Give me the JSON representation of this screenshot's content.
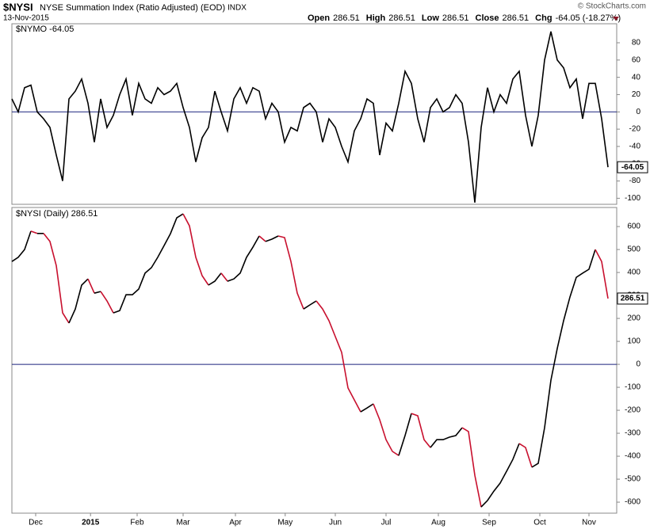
{
  "header": {
    "symbol": "$NYSI",
    "name": "NYSE Summation Index (Ratio Adjusted) (EOD)",
    "exchange": "INDX",
    "date": "13-Nov-2015",
    "credit": "© StockCharts.com",
    "quote": [
      {
        "label": "Open",
        "value": "286.51"
      },
      {
        "label": "High",
        "value": "286.51"
      },
      {
        "label": "Low",
        "value": "286.51"
      },
      {
        "label": "Close",
        "value": "286.51"
      },
      {
        "label": "Chg",
        "value": "-64.05 (-18.27%)"
      }
    ]
  },
  "chart_data": [
    {
      "type": "line",
      "legend": "$NYMO -64.05",
      "color": "#000000",
      "hline": 0,
      "hline_color": "#1a237e",
      "xlim": [
        0,
        95
      ],
      "ylim": [
        -107,
        102
      ],
      "yticks": [
        -100,
        -80,
        -60,
        -40,
        -20,
        0,
        20,
        40,
        60,
        80
      ],
      "x": [
        0,
        1,
        2,
        3,
        4,
        5,
        6,
        7,
        8,
        9,
        10,
        11,
        12,
        13,
        14,
        15,
        16,
        17,
        18,
        19,
        20,
        21,
        22,
        23,
        24,
        25,
        26,
        27,
        28,
        29,
        30,
        31,
        32,
        33,
        34,
        35,
        36,
        37,
        38,
        39,
        40,
        41,
        42,
        43,
        44,
        45,
        46,
        47,
        48,
        49,
        50,
        51,
        52,
        53,
        54,
        55,
        56,
        57,
        58,
        59,
        60,
        61,
        62,
        63,
        64,
        65,
        66,
        67,
        68,
        69,
        70,
        71,
        72,
        73,
        74,
        75,
        76,
        77,
        78,
        79,
        80,
        81,
        82,
        83,
        84,
        85,
        86,
        87,
        88,
        89,
        90,
        91,
        92,
        93,
        94
      ],
      "values": [
        15,
        0,
        28,
        31,
        0,
        -8,
        -18,
        -50,
        -80,
        15,
        24,
        38,
        10,
        -35,
        15,
        -18,
        -4,
        20,
        38,
        -4,
        33,
        15,
        10,
        28,
        20,
        24,
        33,
        5,
        -18,
        -58,
        -30,
        -18,
        24,
        0,
        -22,
        15,
        28,
        10,
        28,
        24,
        -8,
        10,
        0,
        -35,
        -18,
        -22,
        5,
        10,
        0,
        -35,
        -8,
        -18,
        -40,
        -58,
        -22,
        -8,
        15,
        10,
        -50,
        -13,
        -22,
        10,
        47,
        33,
        -8,
        -35,
        5,
        15,
        0,
        5,
        20,
        10,
        -35,
        -105,
        -18,
        28,
        0,
        20,
        10,
        38,
        47,
        -4,
        -40,
        -4,
        60,
        93,
        60,
        51,
        28,
        38,
        -8,
        33,
        33,
        -8,
        -64.05
      ]
    },
    {
      "type": "line",
      "legend": "$NYSI (Daily) 286.51",
      "rise_color": "#000000",
      "fall_color": "#c8102e",
      "hline": 0,
      "hline_color": "#1a237e",
      "xlim": [
        0,
        95
      ],
      "ylim": [
        -648,
        683
      ],
      "yticks": [
        -600,
        -500,
        -400,
        -300,
        -200,
        -100,
        0,
        100,
        200,
        300,
        400,
        500,
        600
      ],
      "xticks": [
        {
          "value": 3.75,
          "label": "Dec"
        },
        {
          "value": 12.4,
          "label": "2015"
        },
        {
          "value": 19.75,
          "label": "Feb"
        },
        {
          "value": 27,
          "label": "Mar"
        },
        {
          "value": 35.25,
          "label": "Apr"
        },
        {
          "value": 43.1,
          "label": "May"
        },
        {
          "value": 51,
          "label": "Jun"
        },
        {
          "value": 59,
          "label": "Jul"
        },
        {
          "value": 67.25,
          "label": "Aug"
        },
        {
          "value": 75.25,
          "label": "Sep"
        },
        {
          "value": 83.25,
          "label": "Oct"
        },
        {
          "value": 91,
          "label": "Nov"
        }
      ],
      "x": [
        0,
        1,
        2,
        3,
        4,
        5,
        6,
        7,
        8,
        9,
        10,
        11,
        12,
        13,
        14,
        15,
        16,
        17,
        18,
        19,
        20,
        21,
        22,
        23,
        24,
        25,
        26,
        27,
        28,
        29,
        30,
        31,
        32,
        33,
        34,
        35,
        36,
        37,
        38,
        39,
        40,
        41,
        42,
        43,
        44,
        45,
        46,
        47,
        48,
        49,
        50,
        51,
        52,
        53,
        54,
        55,
        56,
        57,
        58,
        59,
        60,
        61,
        62,
        63,
        64,
        65,
        66,
        67,
        68,
        69,
        70,
        71,
        72,
        73,
        74,
        75,
        76,
        77,
        78,
        79,
        80,
        81,
        82,
        83,
        84,
        85,
        86,
        87,
        88,
        89,
        90,
        91,
        92,
        93,
        94
      ],
      "values": [
        448,
        466,
        500,
        580,
        570,
        570,
        535,
        430,
        224,
        180,
        241,
        345,
        372,
        310,
        317,
        276,
        224,
        234,
        303,
        303,
        328,
        397,
        421,
        466,
        517,
        569,
        638,
        655,
        603,
        466,
        386,
        345,
        362,
        397,
        362,
        372,
        397,
        466,
        510,
        559,
        535,
        545,
        559,
        552,
        448,
        310,
        241,
        259,
        276,
        241,
        190,
        121,
        52,
        -103,
        -155,
        -207,
        -190,
        -172,
        -241,
        -328,
        -379,
        -397,
        -310,
        -214,
        -224,
        -328,
        -362,
        -328,
        -328,
        -317,
        -310,
        -276,
        -293,
        -483,
        -621,
        -593,
        -552,
        -517,
        -466,
        -414,
        -345,
        -362,
        -448,
        -431,
        -276,
        -69,
        69,
        190,
        293,
        379,
        397,
        414,
        500,
        448,
        286.51
      ]
    }
  ]
}
